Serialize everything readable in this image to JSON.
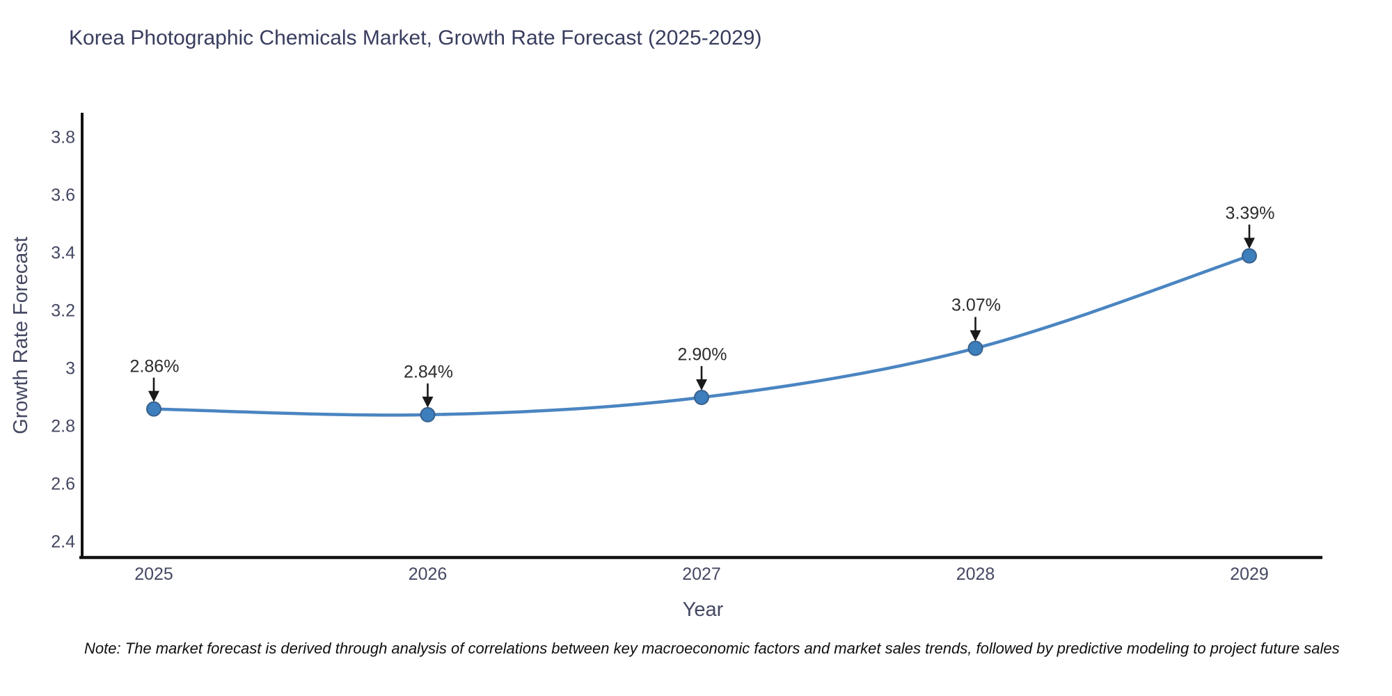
{
  "title": "Korea Photographic Chemicals Market, Growth Rate Forecast (2025-2029)",
  "note": "Note: The market forecast is derived through analysis of correlations between key macroeconomic factors and market sales trends, followed by predictive modeling to project future sales",
  "chart_data": {
    "type": "line",
    "title": "Korea Photographic Chemicals Market, Growth Rate Forecast (2025-2029)",
    "categories": [
      "2025",
      "2026",
      "2027",
      "2028",
      "2029"
    ],
    "series": [
      {
        "name": "Growth Rate Forecast",
        "values": [
          2.86,
          2.84,
          2.9,
          3.07,
          3.39
        ]
      }
    ],
    "point_labels": [
      "2.86%",
      "2.84%",
      "2.90%",
      "3.07%",
      "3.39%"
    ],
    "xlabel": "Year",
    "ylabel": "Growth Rate Forecast",
    "ylim": [
      2.348,
      3.886
    ],
    "yticks": [
      3.8,
      3.6,
      3.4,
      3.2,
      3,
      2.8,
      2.6,
      2.4
    ],
    "ytick_labels": [
      "3.8",
      "3.6",
      "3.4",
      "3.2",
      "3",
      "2.8",
      "2.6",
      "2.4"
    ],
    "grid": false,
    "legend_position": "none",
    "line_shape": "spline",
    "colors": {
      "line": "#4a85c1",
      "marker_fill": "#3d7ebd",
      "marker_edge": "#39618c",
      "axis_line": "#111111",
      "arrow": "#1a1a1a"
    }
  }
}
